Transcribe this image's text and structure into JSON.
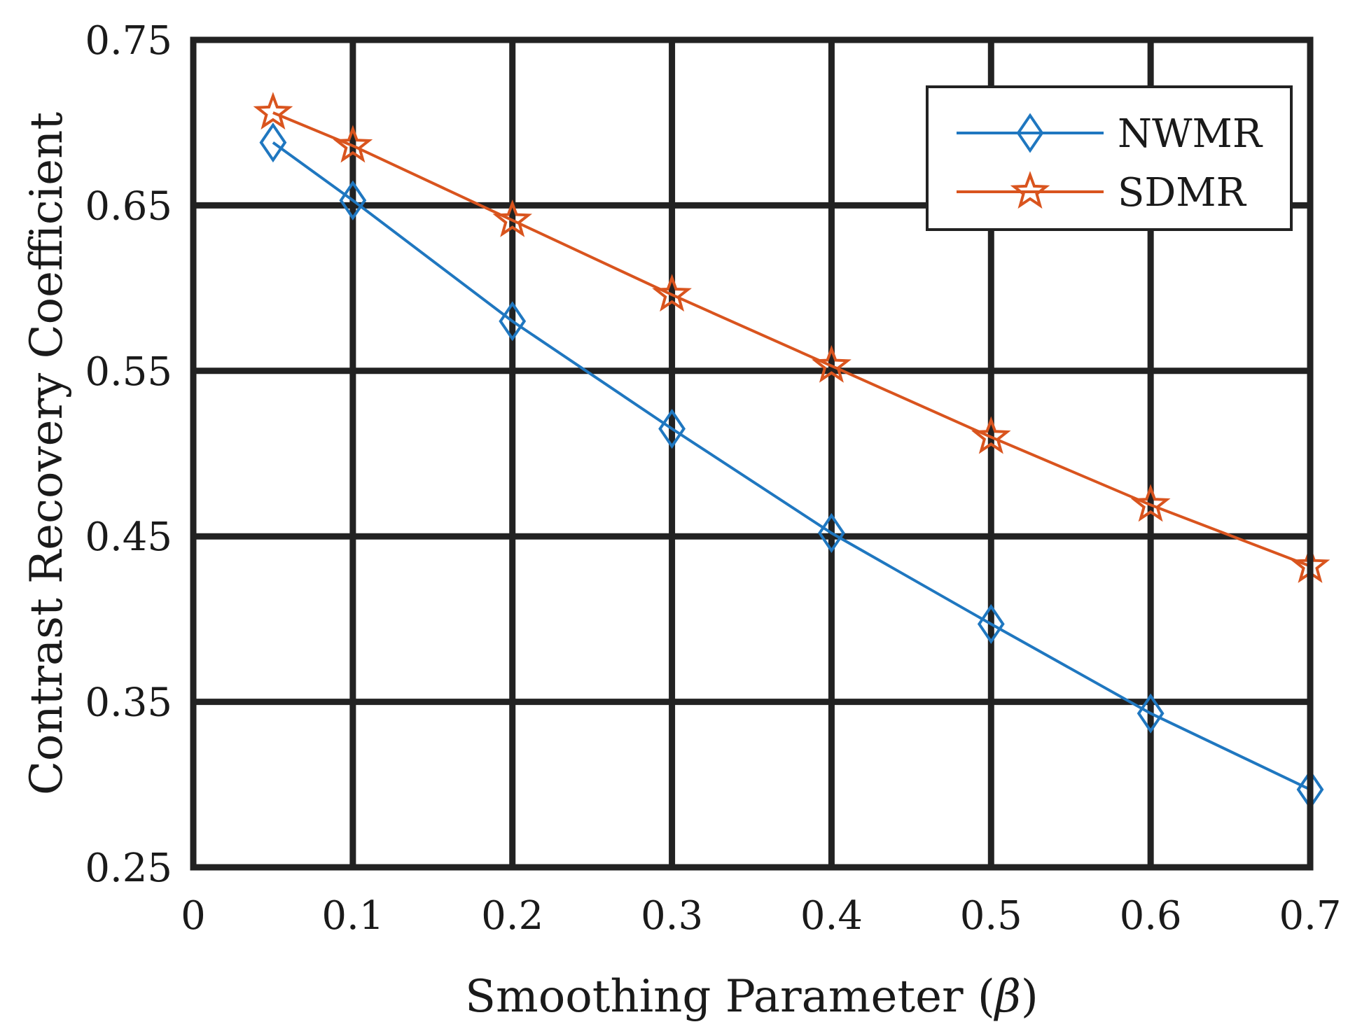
{
  "chart_data": {
    "type": "line",
    "title": "",
    "xlabel_prefix": "Smoothing Parameter (",
    "xlabel_symbol": "β",
    "xlabel_suffix": ")",
    "ylabel": "Contrast Recovery Coefficient",
    "xlim": [
      0,
      0.7
    ],
    "ylim": [
      0.25,
      0.75
    ],
    "xticks": [
      0,
      0.1,
      0.2,
      0.3,
      0.4,
      0.5,
      0.6,
      0.7
    ],
    "xtick_labels": [
      "0",
      "0.1",
      "0.2",
      "0.3",
      "0.4",
      "0.5",
      "0.6",
      "0.7"
    ],
    "yticks": [
      0.25,
      0.35,
      0.45,
      0.55,
      0.65,
      0.75
    ],
    "ytick_labels": [
      "0.25",
      "0.35",
      "0.45",
      "0.55",
      "0.65",
      "0.75"
    ],
    "grid": true,
    "legend_position": "top-right",
    "x": [
      0.05,
      0.1,
      0.2,
      0.3,
      0.4,
      0.5,
      0.6,
      0.7
    ],
    "series": [
      {
        "name": "NWMR",
        "color": "#1f77c0",
        "marker": "diamond",
        "values": [
          0.688,
          0.653,
          0.58,
          0.515,
          0.452,
          0.397,
          0.343,
          0.297
        ]
      },
      {
        "name": "SDMR",
        "color": "#d9541e",
        "marker": "star",
        "values": [
          0.706,
          0.686,
          0.641,
          0.596,
          0.553,
          0.51,
          0.469,
          0.432
        ]
      }
    ]
  }
}
